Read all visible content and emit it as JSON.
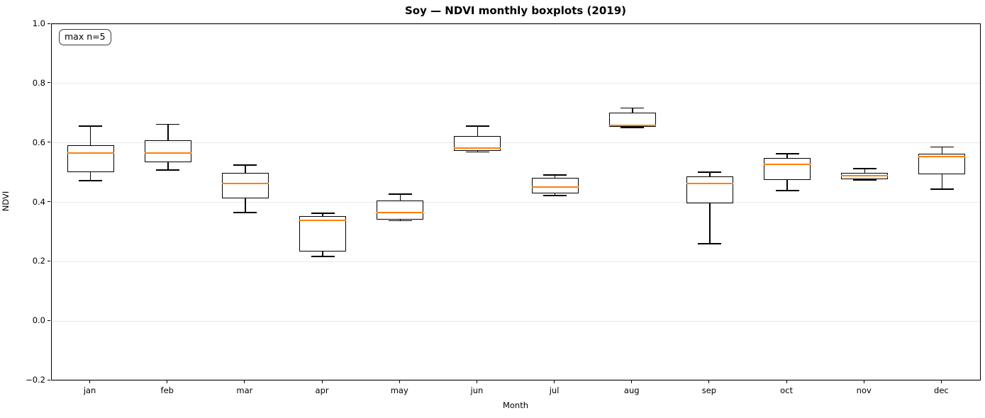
{
  "chart_data": {
    "type": "boxplot",
    "title": "Soy — NDVI monthly boxplots (2019)",
    "xlabel": "Month",
    "ylabel": "NDVI",
    "annotation": "max n=5",
    "ylim": [
      -0.2,
      1.0
    ],
    "yticks": [
      1.0,
      0.8,
      0.6,
      0.4,
      0.2,
      0.0,
      -0.2
    ],
    "ytick_labels": [
      "1.0",
      "0.8",
      "0.6",
      "0.4",
      "0.2",
      "0.0",
      "−0.2"
    ],
    "categories": [
      "jan",
      "feb",
      "mar",
      "apr",
      "may",
      "jun",
      "jul",
      "aug",
      "sep",
      "oct",
      "nov",
      "dec"
    ],
    "grid": "horizontal",
    "legend": "none",
    "colors": {
      "median": "#ff7f0e",
      "box_edge": "#000000",
      "grid": "#e8e8e8",
      "background": "#ffffff"
    },
    "boxes": [
      {
        "month": "jan",
        "whislo": 0.473,
        "q1": 0.501,
        "med": 0.566,
        "q3": 0.591,
        "whishi": 0.657
      },
      {
        "month": "feb",
        "whislo": 0.508,
        "q1": 0.534,
        "med": 0.566,
        "q3": 0.608,
        "whishi": 0.662
      },
      {
        "month": "mar",
        "whislo": 0.365,
        "q1": 0.412,
        "med": 0.463,
        "q3": 0.498,
        "whishi": 0.525
      },
      {
        "month": "apr",
        "whislo": 0.218,
        "q1": 0.234,
        "med": 0.339,
        "q3": 0.354,
        "whishi": 0.363
      },
      {
        "month": "may",
        "whislo": 0.338,
        "q1": 0.342,
        "med": 0.365,
        "q3": 0.407,
        "whishi": 0.427
      },
      {
        "month": "jun",
        "whislo": 0.569,
        "q1": 0.573,
        "med": 0.583,
        "q3": 0.623,
        "whishi": 0.656
      },
      {
        "month": "jul",
        "whislo": 0.423,
        "q1": 0.431,
        "med": 0.452,
        "q3": 0.482,
        "whishi": 0.492
      },
      {
        "month": "aug",
        "whislo": 0.652,
        "q1": 0.655,
        "med": 0.658,
        "q3": 0.702,
        "whishi": 0.717
      },
      {
        "month": "sep",
        "whislo": 0.26,
        "q1": 0.396,
        "med": 0.464,
        "q3": 0.486,
        "whishi": 0.501
      },
      {
        "month": "oct",
        "whislo": 0.439,
        "q1": 0.474,
        "med": 0.528,
        "q3": 0.55,
        "whishi": 0.564
      },
      {
        "month": "nov",
        "whislo": 0.475,
        "q1": 0.478,
        "med": 0.489,
        "q3": 0.498,
        "whishi": 0.513
      },
      {
        "month": "dec",
        "whislo": 0.444,
        "q1": 0.494,
        "med": 0.554,
        "q3": 0.563,
        "whishi": 0.586
      }
    ]
  }
}
